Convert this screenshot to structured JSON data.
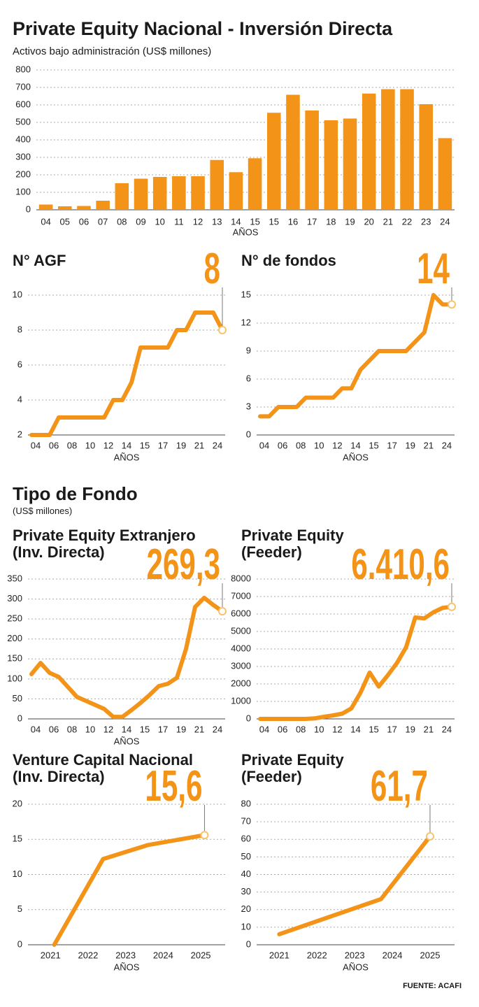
{
  "chart_data": [
    {
      "type": "bar",
      "title": "Private Equity Nacional - Inversión Directa",
      "subtitle": "Activos bajo administración (US$ millones)",
      "categories": [
        "04",
        "05",
        "06",
        "07",
        "08",
        "09",
        "10",
        "11",
        "12",
        "13",
        "14",
        "15",
        "15",
        "16",
        "17",
        "18",
        "19",
        "20",
        "21",
        "22",
        "23",
        "24"
      ],
      "values": [
        30,
        20,
        22,
        52,
        152,
        178,
        188,
        192,
        192,
        285,
        215,
        295,
        555,
        658,
        568,
        512,
        522,
        665,
        690,
        690,
        604,
        410
      ],
      "color": "#f39419",
      "ylim": [
        0,
        800
      ],
      "yticks": [
        0,
        100,
        200,
        300,
        400,
        500,
        600,
        700,
        800
      ],
      "grid": true,
      "xlabel": "AÑOS"
    },
    {
      "type": "line",
      "title": "N° AGF",
      "annotation": "8",
      "categories": [
        "04",
        null,
        "06",
        null,
        "08",
        null,
        "10",
        null,
        "12",
        null,
        "14",
        null,
        "15",
        null,
        "17",
        null,
        "19",
        null,
        "21",
        null,
        "24",
        null
      ],
      "values": [
        2,
        2,
        2,
        3,
        3,
        3,
        3,
        3,
        3,
        4,
        4,
        5,
        7,
        7,
        7,
        7,
        8,
        8,
        9,
        9,
        9,
        8
      ],
      "color": "#f39419",
      "ylim": [
        2,
        10
      ],
      "yticks": [
        2,
        4,
        6,
        8,
        10
      ],
      "grid": true,
      "xlabel": "AÑOS"
    },
    {
      "type": "line",
      "title": "N° de fondos",
      "annotation": "14",
      "categories": [
        "04",
        null,
        "06",
        null,
        "08",
        null,
        "10",
        null,
        "12",
        null,
        "14",
        null,
        "15",
        null,
        "17",
        null,
        "19",
        null,
        "21",
        null,
        "24",
        null
      ],
      "values": [
        2,
        2,
        3,
        3,
        3,
        4,
        4,
        4,
        4,
        5,
        5,
        7,
        8,
        9,
        9,
        9,
        9,
        10,
        11,
        15,
        14,
        14
      ],
      "color": "#f39419",
      "ylim": [
        0,
        15
      ],
      "yticks": [
        0,
        3,
        6,
        9,
        12,
        15
      ],
      "grid": true,
      "xlabel": "AÑOS"
    },
    {
      "type": "line",
      "title": [
        "Private Equity Extranjero",
        "(Inv. Directa)"
      ],
      "annotation": "269,3",
      "categories": [
        "04",
        null,
        "06",
        null,
        "08",
        null,
        "10",
        null,
        "12",
        null,
        "14",
        null,
        "15",
        null,
        "17",
        null,
        "19",
        null,
        "21",
        null,
        "24",
        null
      ],
      "values": [
        112,
        140,
        115,
        105,
        80,
        55,
        45,
        35,
        25,
        5,
        5,
        22,
        40,
        60,
        82,
        88,
        103,
        175,
        280,
        303,
        285,
        269.3
      ],
      "color": "#f39419",
      "ylim": [
        0,
        350
      ],
      "yticks": [
        0,
        50,
        100,
        150,
        200,
        250,
        300,
        350
      ],
      "grid": true,
      "xlabel": "AÑOS"
    },
    {
      "type": "line",
      "title": [
        "Private Equity",
        "(Feeder)"
      ],
      "annotation": "6.410,6",
      "categories": [
        "04",
        null,
        "06",
        null,
        "08",
        null,
        "10",
        null,
        "12",
        null,
        "14",
        null,
        "15",
        null,
        "17",
        null,
        "19",
        null,
        "21",
        null,
        "24",
        null
      ],
      "values": [
        0,
        0,
        0,
        0,
        0,
        0,
        30,
        120,
        200,
        300,
        600,
        1500,
        2650,
        1850,
        2500,
        3200,
        4100,
        5800,
        5750,
        6100,
        6350,
        6410.6
      ],
      "color": "#f39419",
      "ylim": [
        0,
        8000
      ],
      "yticks": [
        0,
        1000,
        2000,
        3000,
        4000,
        5000,
        6000,
        7000,
        8000
      ],
      "grid": true
    },
    {
      "type": "line",
      "title": [
        "Venture Capital Nacional",
        "(Inv. Directa)"
      ],
      "annotation": "15,6",
      "x": [
        2021.1,
        2022.4,
        2023.6,
        2025.1
      ],
      "values": [
        0,
        12.2,
        14.2,
        15.6
      ],
      "xlim": [
        2020.4,
        2025.65
      ],
      "xticks": [
        2021,
        2022,
        2023,
        2024,
        2025
      ],
      "color": "#f39419",
      "ylim": [
        0,
        20
      ],
      "yticks": [
        0,
        5,
        10,
        15,
        20
      ],
      "grid": true,
      "xlabel": "AÑOS"
    },
    {
      "type": "line",
      "title": [
        "Private Equity",
        "(Feeder)"
      ],
      "annotation": "61,7",
      "x": [
        2021,
        2023.7,
        2025
      ],
      "values": [
        6,
        26,
        61.7
      ],
      "xlim": [
        2020.4,
        2025.65
      ],
      "xticks": [
        2021,
        2022,
        2023,
        2024,
        2025
      ],
      "color": "#f39419",
      "ylim": [
        0,
        80
      ],
      "yticks": [
        0,
        10,
        20,
        30,
        40,
        50,
        60,
        70,
        80
      ],
      "grid": true,
      "xlabel": "AÑOS"
    }
  ],
  "section_title": "Tipo de Fondo",
  "section_subtitle": "(US$ millones)",
  "source": "FUENTE: ACAFI"
}
